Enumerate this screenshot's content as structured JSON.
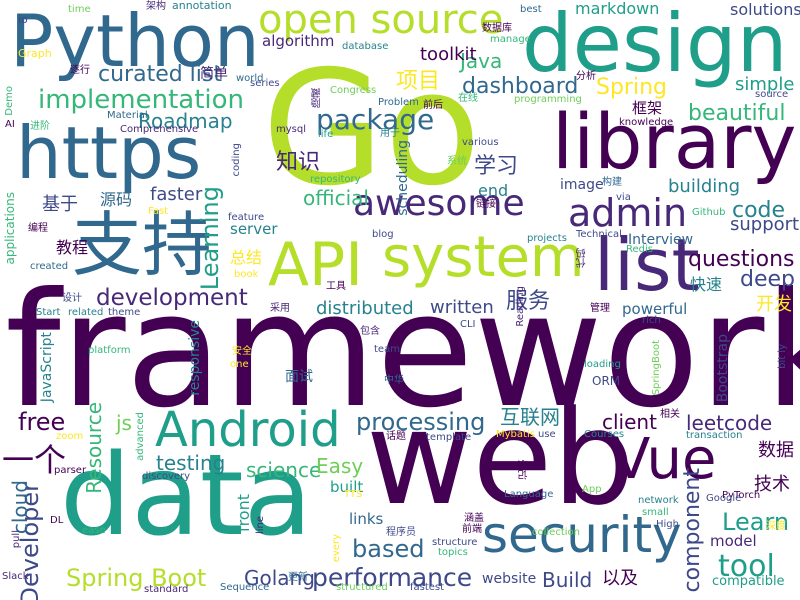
{
  "palette": {
    "navy": "#440154",
    "purple": "#482878",
    "indigo": "#3e4989",
    "blue": "#31688e",
    "teal": "#26828e",
    "green": "#1f9e89",
    "jade": "#35b779",
    "lime": "#6ece58",
    "yellowgreen": "#b5de2b",
    "yellow": "#fde725"
  },
  "words": [
    {
      "text": "framework",
      "color": "navy"
    },
    {
      "text": "Go",
      "color": "yellowgreen"
    },
    {
      "text": "web",
      "color": "navy"
    },
    {
      "text": "data",
      "color": "green"
    },
    {
      "text": "design",
      "color": "green"
    },
    {
      "text": "Python",
      "color": "blue"
    },
    {
      "text": "https",
      "color": "blue"
    },
    {
      "text": "library",
      "color": "navy"
    },
    {
      "text": "API",
      "color": "yellowgreen"
    },
    {
      "text": "system",
      "color": "yellowgreen"
    },
    {
      "text": "list",
      "color": "purple"
    },
    {
      "text": "支持",
      "color": "blue"
    },
    {
      "text": "security",
      "color": "blue"
    },
    {
      "text": "Android",
      "color": "green"
    },
    {
      "text": "Vue",
      "color": "navy"
    },
    {
      "text": "open source",
      "color": "yellowgreen"
    },
    {
      "text": "admin",
      "color": "purple"
    },
    {
      "text": "awesome",
      "color": "purple"
    },
    {
      "text": "implementation",
      "color": "jade"
    },
    {
      "text": "development",
      "color": "purple"
    },
    {
      "text": "processing",
      "color": "blue"
    },
    {
      "text": "package",
      "color": "blue"
    },
    {
      "text": "curated list",
      "color": "blue"
    },
    {
      "text": "beautiful",
      "color": "jade"
    },
    {
      "text": "dashboard",
      "color": "blue"
    },
    {
      "text": "performance",
      "color": "indigo"
    },
    {
      "text": "based",
      "color": "blue"
    },
    {
      "text": "Spring Boot",
      "color": "yellowgreen"
    },
    {
      "text": "Learning",
      "color": "green"
    },
    {
      "text": "Developer",
      "color": "indigo"
    },
    {
      "text": "Resource",
      "color": "jade"
    },
    {
      "text": "component",
      "color": "indigo"
    },
    {
      "text": "tool",
      "color": "green"
    },
    {
      "text": "Learn",
      "color": "green"
    },
    {
      "text": "questions",
      "color": "navy"
    },
    {
      "text": "code",
      "color": "teal"
    },
    {
      "text": "deep",
      "color": "indigo"
    },
    {
      "text": "leetcode",
      "color": "purple"
    },
    {
      "text": "client",
      "color": "navy"
    },
    {
      "text": "testing",
      "color": "teal"
    },
    {
      "text": "science",
      "color": "jade"
    },
    {
      "text": "Easy",
      "color": "lime"
    },
    {
      "text": "Golang",
      "color": "indigo"
    },
    {
      "text": "Build",
      "color": "indigo"
    },
    {
      "text": "free",
      "color": "navy"
    },
    {
      "text": "js",
      "color": "lime"
    },
    {
      "text": "cloud",
      "color": "blue"
    },
    {
      "text": "Roadmap",
      "color": "teal"
    },
    {
      "text": "Java",
      "color": "jade"
    },
    {
      "text": "Spring",
      "color": "yellow"
    },
    {
      "text": "toolkit",
      "color": "navy"
    },
    {
      "text": "official",
      "color": "jade"
    },
    {
      "text": "faster",
      "color": "indigo"
    },
    {
      "text": "written",
      "color": "indigo"
    },
    {
      "text": "distributed",
      "color": "teal"
    },
    {
      "text": "support",
      "color": "indigo"
    },
    {
      "text": "building",
      "color": "teal"
    },
    {
      "text": "simple",
      "color": "green"
    },
    {
      "text": "solutions",
      "color": "indigo"
    },
    {
      "text": "markdown",
      "color": "green"
    },
    {
      "text": "algorithm",
      "color": "purple"
    },
    {
      "text": "server",
      "color": "teal"
    },
    {
      "text": "links",
      "color": "blue"
    },
    {
      "text": "built",
      "color": "green"
    },
    {
      "text": "end",
      "color": "teal"
    },
    {
      "text": "front",
      "color": "green"
    },
    {
      "text": "model",
      "color": "purple"
    },
    {
      "text": "scheduling",
      "color": "blue"
    },
    {
      "text": "responsive",
      "color": "teal"
    },
    {
      "text": "powerful",
      "color": "blue"
    },
    {
      "text": "Interview",
      "color": "blue"
    },
    {
      "text": "Bootstrap",
      "color": "indigo"
    },
    {
      "text": "website",
      "color": "indigo"
    },
    {
      "text": "compatible",
      "color": "green"
    },
    {
      "text": "JavaScript",
      "color": "teal"
    },
    {
      "text": "image",
      "color": "indigo"
    },
    {
      "text": "ORM",
      "color": "indigo"
    },
    {
      "text": "一个",
      "color": "navy"
    },
    {
      "text": "项目",
      "color": "yellow"
    },
    {
      "text": "知识",
      "color": "purple"
    },
    {
      "text": "学习",
      "color": "indigo"
    },
    {
      "text": "基于",
      "color": "indigo"
    },
    {
      "text": "教程",
      "color": "navy"
    },
    {
      "text": "源码",
      "color": "blue"
    },
    {
      "text": "服务",
      "color": "indigo"
    },
    {
      "text": "互联网",
      "color": "teal"
    },
    {
      "text": "数据",
      "color": "navy"
    },
    {
      "text": "技术",
      "color": "navy"
    },
    {
      "text": "快速",
      "color": "teal"
    },
    {
      "text": "开发",
      "color": "yellow"
    },
    {
      "text": "总结",
      "color": "yellow"
    },
    {
      "text": "以及",
      "color": "navy"
    },
    {
      "text": "框架",
      "color": "navy"
    },
    {
      "text": "面试",
      "color": "blue"
    },
    {
      "text": "简单",
      "color": "purple"
    },
    {
      "text": "Graph",
      "color": "yellow"
    },
    {
      "text": "io",
      "color": "indigo"
    },
    {
      "text": "time",
      "color": "lime"
    },
    {
      "text": "架构",
      "color": "purple"
    },
    {
      "text": "annotation",
      "color": "teal"
    },
    {
      "text": "best",
      "color": "blue"
    },
    {
      "text": "数据库",
      "color": "navy"
    },
    {
      "text": "manage",
      "color": "jade"
    },
    {
      "text": "database",
      "color": "teal"
    },
    {
      "text": "series",
      "color": "indigo"
    },
    {
      "text": "world",
      "color": "blue"
    },
    {
      "text": "逐行",
      "color": "navy"
    },
    {
      "text": "Demo",
      "color": "jade"
    },
    {
      "text": "AI",
      "color": "navy"
    },
    {
      "text": "进阶",
      "color": "jade"
    },
    {
      "text": "Material",
      "color": "blue"
    },
    {
      "text": "Comprehensive",
      "color": "purple"
    },
    {
      "text": "Congress",
      "color": "lime"
    },
    {
      "text": "隐藏",
      "color": "purple"
    },
    {
      "text": "在线",
      "color": "jade"
    },
    {
      "text": "Problem",
      "color": "blue"
    },
    {
      "text": "前后",
      "color": "navy"
    },
    {
      "text": "programming",
      "color": "lime"
    },
    {
      "text": "分析",
      "color": "navy"
    },
    {
      "text": "source",
      "color": "indigo"
    },
    {
      "text": "knowledge",
      "color": "navy"
    },
    {
      "text": "mysql",
      "color": "purple"
    },
    {
      "text": "用于",
      "color": "teal"
    },
    {
      "text": "life",
      "color": "green"
    },
    {
      "text": "various",
      "color": "indigo"
    },
    {
      "text": "coding",
      "color": "indigo"
    },
    {
      "text": "repository",
      "color": "jade"
    },
    {
      "text": "系统",
      "color": "lime"
    },
    {
      "text": "构建",
      "color": "blue"
    },
    {
      "text": "链接",
      "color": "navy"
    },
    {
      "text": "via",
      "color": "indigo"
    },
    {
      "text": "Fast",
      "color": "yellow"
    },
    {
      "text": "Github",
      "color": "jade"
    },
    {
      "text": "feature",
      "color": "indigo"
    },
    {
      "text": "编程",
      "color": "navy"
    },
    {
      "text": "applications",
      "color": "jade"
    },
    {
      "text": "blog",
      "color": "indigo"
    },
    {
      "text": "projects",
      "color": "teal"
    },
    {
      "text": "Technical",
      "color": "indigo"
    },
    {
      "text": "Redis",
      "color": "jade"
    },
    {
      "text": "代码",
      "color": "purple"
    },
    {
      "text": "created",
      "color": "blue"
    },
    {
      "text": "book",
      "color": "yellow"
    },
    {
      "text": "工具",
      "color": "navy"
    },
    {
      "text": "设计",
      "color": "indigo"
    },
    {
      "text": "Reading",
      "color": "purple"
    },
    {
      "text": "管理",
      "color": "navy"
    },
    {
      "text": "Start",
      "color": "teal"
    },
    {
      "text": "related",
      "color": "teal"
    },
    {
      "text": "theme",
      "color": "indigo"
    },
    {
      "text": "采用",
      "color": "purple"
    },
    {
      "text": "CLI",
      "color": "indigo"
    },
    {
      "text": "rich",
      "color": "indigo"
    },
    {
      "text": "包含",
      "color": "purple"
    },
    {
      "text": "team",
      "color": "indigo"
    },
    {
      "text": "安全",
      "color": "yellow"
    },
    {
      "text": "one",
      "color": "yellow"
    },
    {
      "text": "platform",
      "color": "jade"
    },
    {
      "text": "loading",
      "color": "green"
    },
    {
      "text": "bit ly",
      "color": "indigo"
    },
    {
      "text": "SpringBoot",
      "color": "lime"
    },
    {
      "text": "中华",
      "color": "blue"
    },
    {
      "text": "相关",
      "color": "navy"
    },
    {
      "text": "advanced",
      "color": "jade"
    },
    {
      "text": "zoom",
      "color": "yellow"
    },
    {
      "text": "话题",
      "color": "navy"
    },
    {
      "text": "template",
      "color": "indigo"
    },
    {
      "text": "Mybatis",
      "color": "yellow"
    },
    {
      "text": "use",
      "color": "indigo"
    },
    {
      "text": "Courses",
      "color": "teal"
    },
    {
      "text": "transaction",
      "color": "teal"
    },
    {
      "text": "discovery",
      "color": "indigo"
    },
    {
      "text": "parser",
      "color": "navy"
    },
    {
      "text": "PyTorch",
      "color": "navy"
    },
    {
      "text": "记录",
      "color": "navy"
    },
    {
      "text": "TTS",
      "color": "yellow"
    },
    {
      "text": "App",
      "color": "lime"
    },
    {
      "text": "Language",
      "color": "blue"
    },
    {
      "text": "network",
      "color": "teal"
    },
    {
      "text": "Google",
      "color": "indigo"
    },
    {
      "text": "small",
      "color": "jade"
    },
    {
      "text": "DL",
      "color": "navy"
    },
    {
      "text": "ease",
      "color": "jade"
    },
    {
      "text": "line",
      "color": "purple"
    },
    {
      "text": "涵盖",
      "color": "navy"
    },
    {
      "text": "High",
      "color": "indigo"
    },
    {
      "text": "collection",
      "color": "lime"
    },
    {
      "text": "深度",
      "color": "yellow"
    },
    {
      "text": "pull",
      "color": "purple"
    },
    {
      "text": "程序员",
      "color": "indigo"
    },
    {
      "text": "structure",
      "color": "indigo"
    },
    {
      "text": "前端",
      "color": "navy"
    },
    {
      "text": "every",
      "color": "yellow"
    },
    {
      "text": "topics",
      "color": "jade"
    },
    {
      "text": "Slack",
      "color": "purple"
    },
    {
      "text": "standard",
      "color": "purple"
    },
    {
      "text": "Sequence",
      "color": "blue"
    },
    {
      "text": "更新",
      "color": "blue"
    },
    {
      "text": "structured",
      "color": "lime"
    },
    {
      "text": "fastest",
      "color": "indigo"
    }
  ]
}
